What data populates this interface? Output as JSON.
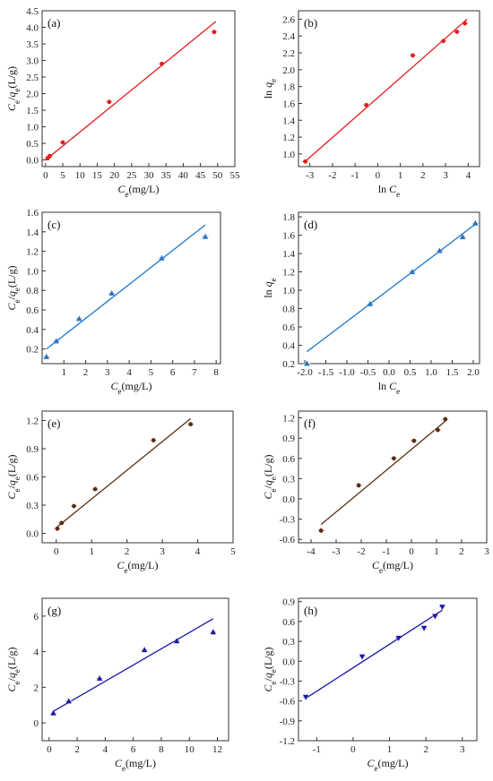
{
  "chart_data": [
    {
      "type": "scatter",
      "panel_label": "(a)",
      "xlabel": "C_e(mg/L)",
      "ylabel": "C_e/q_e(L/g)",
      "xlim": [
        -1,
        55
      ],
      "ylim": [
        -0.2,
        4.5
      ],
      "xticks": [
        0,
        5,
        10,
        15,
        20,
        25,
        30,
        35,
        40,
        45,
        50,
        55
      ],
      "yticks": [
        0.0,
        0.5,
        1.0,
        1.5,
        2.0,
        2.5,
        3.0,
        3.5,
        4.0,
        4.5
      ],
      "ytick_decimals": 1,
      "color": "#e31a1c",
      "marker": "circle",
      "points": [
        [
          0.6,
          0.05
        ],
        [
          1.2,
          0.12
        ],
        [
          5.0,
          0.53
        ],
        [
          18.5,
          1.75
        ],
        [
          33.8,
          2.9
        ],
        [
          49.0,
          3.86
        ]
      ],
      "fit": [
        [
          0.0,
          0.0
        ],
        [
          49.5,
          4.18
        ]
      ]
    },
    {
      "type": "scatter",
      "panel_label": "(b)",
      "xlabel": "ln C_e",
      "ylabel": "ln q_e",
      "xlim": [
        -3.5,
        4.5
      ],
      "ylim": [
        0.85,
        2.7
      ],
      "xticks": [
        -3,
        -2,
        -1,
        0,
        1,
        2,
        3,
        4
      ],
      "yticks": [
        1.0,
        1.2,
        1.4,
        1.6,
        1.8,
        2.0,
        2.2,
        2.4,
        2.6
      ],
      "ytick_decimals": 1,
      "color": "#e31a1c",
      "marker": "circle",
      "points": [
        [
          -3.2,
          0.91
        ],
        [
          -0.5,
          1.58
        ],
        [
          1.55,
          2.17
        ],
        [
          2.9,
          2.34
        ],
        [
          3.5,
          2.45
        ],
        [
          3.85,
          2.55
        ]
      ],
      "fit": [
        [
          -3.25,
          0.9
        ],
        [
          3.95,
          2.6
        ]
      ]
    },
    {
      "type": "scatter",
      "panel_label": "(c)",
      "xlabel": "C_e(mg/L)",
      "ylabel": "C_e/q_e(L/g)",
      "xlim": [
        0,
        8.2
      ],
      "ylim": [
        0.05,
        1.6
      ],
      "xticks": [
        1,
        2,
        3,
        4,
        5,
        6,
        7,
        8
      ],
      "yticks": [
        0.2,
        0.4,
        0.6,
        0.8,
        1.0,
        1.2,
        1.4,
        1.6
      ],
      "ytick_decimals": 1,
      "color": "#1f78c8",
      "marker": "triangle",
      "points": [
        [
          0.2,
          0.12
        ],
        [
          0.65,
          0.28
        ],
        [
          1.7,
          0.51
        ],
        [
          3.2,
          0.77
        ],
        [
          5.5,
          1.13
        ],
        [
          7.5,
          1.35
        ]
      ],
      "fit": [
        [
          0.2,
          0.2
        ],
        [
          7.5,
          1.47
        ]
      ]
    },
    {
      "type": "scatter",
      "panel_label": "(d)",
      "xlabel": "ln C_e",
      "ylabel": "ln q_e",
      "xlim": [
        -2.15,
        2.15
      ],
      "ylim": [
        0.2,
        1.85
      ],
      "xticks": [
        -2.0,
        -1.5,
        -1.0,
        -0.5,
        0.0,
        0.5,
        1.0,
        1.5,
        2.0
      ],
      "yticks": [
        0.2,
        0.4,
        0.6,
        0.8,
        1.0,
        1.2,
        1.4,
        1.6,
        1.8
      ],
      "ytick_decimals": 1,
      "color": "#1f78c8",
      "marker": "triangle",
      "points": [
        [
          -1.95,
          0.2
        ],
        [
          -0.45,
          0.85
        ],
        [
          0.55,
          1.2
        ],
        [
          1.2,
          1.43
        ],
        [
          1.75,
          1.58
        ],
        [
          2.05,
          1.73
        ]
      ],
      "fit": [
        [
          -1.95,
          0.33
        ],
        [
          2.05,
          1.72
        ]
      ]
    },
    {
      "type": "scatter",
      "panel_label": "(e)",
      "xlabel": "C_e(mg/L)",
      "ylabel": "C_e/q_e(L/g)",
      "xlim": [
        -0.4,
        5.0
      ],
      "ylim": [
        -0.1,
        1.3
      ],
      "xticks": [
        0,
        1,
        2,
        3,
        4,
        5
      ],
      "yticks": [
        0.0,
        0.3,
        0.6,
        0.9,
        1.2
      ],
      "ytick_decimals": 1,
      "color": "#5a2d12",
      "marker": "circle",
      "points": [
        [
          0.03,
          0.05
        ],
        [
          0.15,
          0.11
        ],
        [
          0.5,
          0.29
        ],
        [
          1.1,
          0.47
        ],
        [
          2.75,
          0.99
        ],
        [
          3.8,
          1.16
        ]
      ],
      "fit": [
        [
          0.03,
          0.07
        ],
        [
          3.8,
          1.22
        ]
      ]
    },
    {
      "type": "scatter",
      "panel_label": "(f)",
      "xlabel": "C_e(mg/L)",
      "ylabel": "C_e/q_e(L/g)",
      "xlim": [
        -4.5,
        3.0
      ],
      "ylim": [
        -0.65,
        1.3
      ],
      "xticks": [
        -4,
        -3,
        -2,
        -1,
        0,
        1,
        2,
        3
      ],
      "yticks": [
        -0.6,
        -0.3,
        0.0,
        0.3,
        0.6,
        0.9,
        1.2
      ],
      "ytick_decimals": 1,
      "color": "#5a2d12",
      "marker": "circle",
      "points": [
        [
          -3.6,
          -0.47
        ],
        [
          -2.1,
          0.2
        ],
        [
          -0.7,
          0.6
        ],
        [
          0.1,
          0.86
        ],
        [
          1.05,
          1.02
        ],
        [
          1.35,
          1.18
        ]
      ],
      "fit": [
        [
          -3.6,
          -0.38
        ],
        [
          1.35,
          1.15
        ]
      ]
    },
    {
      "type": "scatter",
      "panel_label": "(g)",
      "xlabel": "C_e(mg/L)",
      "ylabel": "C_e/q_e(L/g)",
      "xlim": [
        -0.5,
        12.8
      ],
      "ylim": [
        -1.0,
        7.0
      ],
      "xticks": [
        0,
        2,
        4,
        6,
        8,
        10,
        12
      ],
      "yticks": [
        0,
        2,
        4,
        6
      ],
      "ytick_decimals": 0,
      "color": "#1a1aa8",
      "marker": "triangle",
      "points": [
        [
          0.3,
          0.55
        ],
        [
          1.4,
          1.22
        ],
        [
          3.6,
          2.5
        ],
        [
          6.8,
          4.1
        ],
        [
          9.1,
          4.6
        ],
        [
          11.7,
          5.1
        ]
      ],
      "fit": [
        [
          0.3,
          0.65
        ],
        [
          11.7,
          5.85
        ]
      ]
    },
    {
      "type": "scatter",
      "panel_label": "(h)",
      "xlabel": "C_e(mg/L)",
      "ylabel": "C_e/q_e(L/g)",
      "xlim": [
        -1.5,
        3.4
      ],
      "ylim": [
        -1.2,
        0.95
      ],
      "xticks": [
        -1,
        0,
        1,
        2,
        3
      ],
      "yticks": [
        -1.2,
        -0.9,
        -0.6,
        -0.3,
        0.0,
        0.3,
        0.6,
        0.9
      ],
      "ytick_decimals": 1,
      "color": "#1a1aa8",
      "marker": "triangle_down",
      "points": [
        [
          -1.3,
          -0.54
        ],
        [
          0.25,
          0.07
        ],
        [
          1.25,
          0.35
        ],
        [
          1.95,
          0.5
        ],
        [
          2.25,
          0.68
        ],
        [
          2.45,
          0.82
        ]
      ],
      "fit": [
        [
          -1.3,
          -0.56
        ],
        [
          2.45,
          0.77
        ]
      ]
    }
  ]
}
